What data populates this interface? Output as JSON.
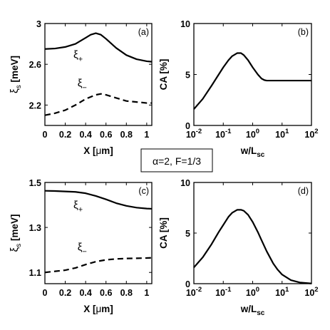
{
  "caption": "α=2, F=1/3",
  "chart_data": [
    {
      "id": "a",
      "type": "line",
      "panel_label": "(a)",
      "xlabel_main": "X [",
      "xlabel_unit_greek": "μ",
      "xlabel_tail": "m]",
      "ylabel_main": "ξ",
      "ylabel_sub": "s",
      "ylabel_unit": " [meV]",
      "xlim": [
        0,
        1.05
      ],
      "ylim": [
        2.0,
        3.0
      ],
      "xticks": [
        0,
        0.2,
        0.4,
        0.6,
        0.8,
        1
      ],
      "xtick_labels": [
        "0",
        "0.2",
        "0.4",
        "0.6",
        "0.8",
        "1"
      ],
      "yticks": [
        2.2,
        2.6,
        3.0
      ],
      "ytick_labels": [
        "2.2",
        "2.6",
        "3"
      ],
      "series": [
        {
          "label_main": "ξ",
          "label_sub": "+",
          "style": "solid",
          "x": [
            0,
            0.1,
            0.2,
            0.3,
            0.4,
            0.45,
            0.5,
            0.55,
            0.6,
            0.7,
            0.8,
            0.9,
            1.0,
            1.05
          ],
          "y": [
            2.75,
            2.755,
            2.77,
            2.8,
            2.86,
            2.89,
            2.905,
            2.89,
            2.85,
            2.76,
            2.69,
            2.65,
            2.63,
            2.625
          ],
          "label_x": 0.28,
          "label_y": 2.66
        },
        {
          "label_main": "ξ",
          "label_sub": "−",
          "style": "dashed",
          "x": [
            0,
            0.1,
            0.2,
            0.3,
            0.4,
            0.5,
            0.55,
            0.6,
            0.7,
            0.8,
            0.9,
            1.0,
            1.05
          ],
          "y": [
            2.1,
            2.12,
            2.15,
            2.2,
            2.26,
            2.3,
            2.31,
            2.3,
            2.27,
            2.24,
            2.23,
            2.22,
            2.22
          ],
          "label_x": 0.32,
          "label_y": 2.38
        }
      ]
    },
    {
      "id": "b",
      "type": "line",
      "panel_label": "(b)",
      "xlabel_main": "w/L",
      "xlabel_sub": "sc",
      "ylabel": "CA [%]",
      "xscale": "log",
      "xlim": [
        0.01,
        100
      ],
      "ylim": [
        0,
        10
      ],
      "xticks": [
        0.01,
        0.1,
        1,
        10,
        100
      ],
      "xtick_exponents": [
        "-2",
        "-1",
        "0",
        "1",
        "2"
      ],
      "xtick_base": "10",
      "yticks": [
        0,
        5,
        10
      ],
      "ytick_labels": [
        "0",
        "5",
        "10"
      ],
      "series": [
        {
          "style": "solid",
          "x": [
            0.01,
            0.02,
            0.04,
            0.07,
            0.1,
            0.15,
            0.2,
            0.3,
            0.4,
            0.5,
            0.7,
            1.0,
            1.5,
            2.0,
            2.5,
            3.0,
            5,
            10,
            30,
            100
          ],
          "y": [
            1.6,
            2.6,
            3.9,
            5.0,
            5.7,
            6.4,
            6.8,
            7.1,
            7.1,
            6.9,
            6.4,
            5.7,
            5.0,
            4.6,
            4.45,
            4.4,
            4.4,
            4.4,
            4.4,
            4.4
          ]
        }
      ]
    },
    {
      "id": "c",
      "type": "line",
      "panel_label": "(c)",
      "xlabel_main": "X [",
      "xlabel_unit_greek": "μ",
      "xlabel_tail": "m]",
      "ylabel_main": "ξ",
      "ylabel_sub": "s",
      "ylabel_unit": " [meV]",
      "xlim": [
        0,
        1.05
      ],
      "ylim": [
        1.05,
        1.5
      ],
      "xticks": [
        0,
        0.2,
        0.4,
        0.6,
        0.8,
        1
      ],
      "xtick_labels": [
        "0",
        "0.2",
        "0.4",
        "0.6",
        "0.8",
        "1"
      ],
      "yticks": [
        1.1,
        1.3,
        1.5
      ],
      "ytick_labels": [
        "1.1",
        "1.3",
        "1.5"
      ],
      "series": [
        {
          "label_main": "ξ",
          "label_sub": "+",
          "style": "solid",
          "x": [
            0,
            0.1,
            0.2,
            0.3,
            0.4,
            0.5,
            0.6,
            0.7,
            0.8,
            0.9,
            1.0,
            1.05
          ],
          "y": [
            1.463,
            1.462,
            1.46,
            1.458,
            1.452,
            1.44,
            1.425,
            1.408,
            1.396,
            1.388,
            1.384,
            1.383
          ],
          "label_x": 0.28,
          "label_y": 1.385
        },
        {
          "label_main": "ξ",
          "label_sub": "−",
          "style": "dashed",
          "x": [
            0,
            0.1,
            0.2,
            0.3,
            0.4,
            0.5,
            0.6,
            0.7,
            0.8,
            0.9,
            1.0,
            1.05
          ],
          "y": [
            1.1,
            1.105,
            1.11,
            1.12,
            1.135,
            1.148,
            1.156,
            1.16,
            1.162,
            1.163,
            1.164,
            1.165
          ],
          "label_x": 0.32,
          "label_y": 1.198
        }
      ]
    },
    {
      "id": "d",
      "type": "line",
      "panel_label": "(d)",
      "xlabel_main": "w/L",
      "xlabel_sub": "sc",
      "ylabel": "CA [%]",
      "xscale": "log",
      "xlim": [
        0.01,
        100
      ],
      "ylim": [
        0,
        10
      ],
      "xticks": [
        0.01,
        0.1,
        1,
        10,
        100
      ],
      "xtick_exponents": [
        "-2",
        "-1",
        "0",
        "1",
        "2"
      ],
      "xtick_base": "10",
      "yticks": [
        0,
        5,
        10
      ],
      "ytick_labels": [
        "0",
        "5",
        "10"
      ],
      "series": [
        {
          "style": "solid",
          "x": [
            0.01,
            0.02,
            0.04,
            0.07,
            0.1,
            0.15,
            0.2,
            0.3,
            0.4,
            0.5,
            0.7,
            1.0,
            1.5,
            2.0,
            3.0,
            5,
            7,
            10,
            20,
            40,
            100
          ],
          "y": [
            1.6,
            2.6,
            3.9,
            5.1,
            5.8,
            6.6,
            7.0,
            7.3,
            7.3,
            7.2,
            6.8,
            6.1,
            5.1,
            4.3,
            3.2,
            2.0,
            1.4,
            0.9,
            0.35,
            0.12,
            0.02
          ]
        }
      ]
    }
  ]
}
